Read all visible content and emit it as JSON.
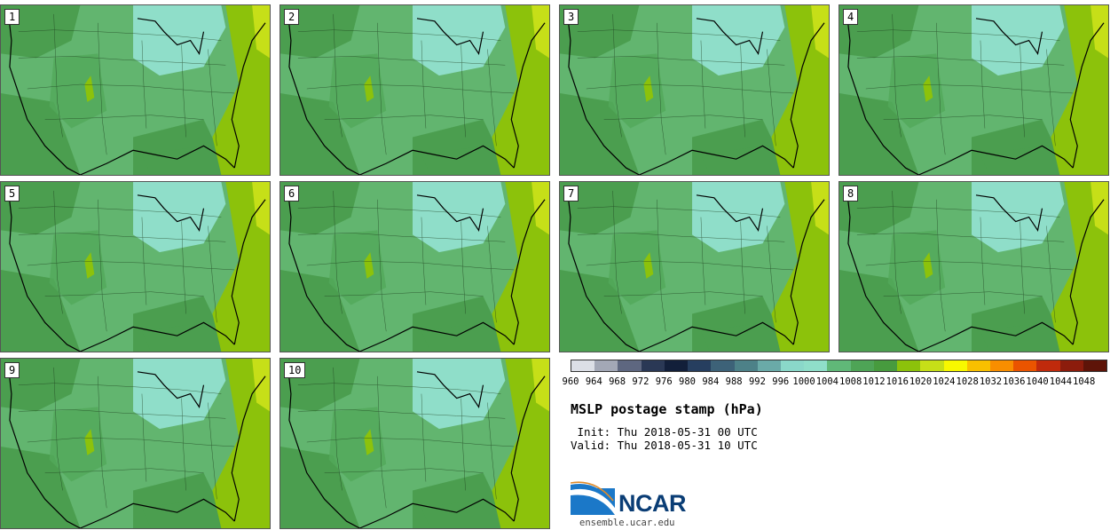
{
  "members": [
    "1",
    "2",
    "3",
    "4",
    "5",
    "6",
    "7",
    "8",
    "9",
    "10"
  ],
  "legend": {
    "ticks": [
      "960",
      "964",
      "968",
      "972",
      "976",
      "980",
      "984",
      "988",
      "992",
      "996",
      "1000",
      "1004",
      "1008",
      "1012",
      "1016",
      "1020",
      "1024",
      "1028",
      "1032",
      "1036",
      "1040",
      "1044",
      "1048"
    ],
    "colors": [
      "#dcdfe6",
      "#a3a8b6",
      "#5e6780",
      "#2a3855",
      "#121f3a",
      "#263e5f",
      "#3d6278",
      "#4d8188",
      "#6aaaa8",
      "#8ad8c9",
      "#8fdec9",
      "#60b878",
      "#4ea456",
      "#479b3e",
      "#8cc20b",
      "#c6df18",
      "#f8f800",
      "#f9c000",
      "#f98e00",
      "#ea5400",
      "#c02a0c",
      "#8c1c0c",
      "#5e1408"
    ]
  },
  "title": "MSLP postage stamp (hPa)",
  "init": " Init: Thu 2018-05-31 00 UTC",
  "valid": "Valid: Thu 2018-05-31 10 UTC",
  "logo": {
    "text": "NCAR",
    "site": "ensemble.ucar.edu"
  }
}
